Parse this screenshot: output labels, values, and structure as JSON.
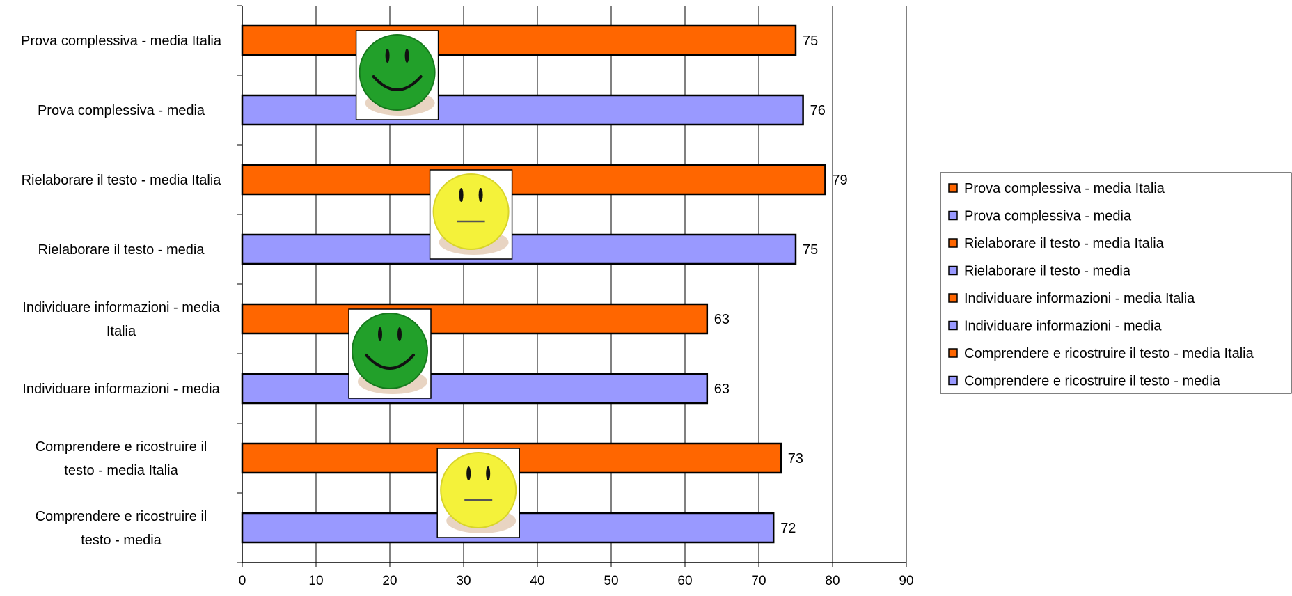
{
  "chart_data": {
    "type": "bar",
    "orientation": "horizontal",
    "categories": [
      "Prova complessiva - media Italia",
      "Prova complessiva - media",
      "Rielaborare il testo - media Italia",
      "Rielaborare il testo - media",
      "Individuare informazioni - media Italia",
      "Individuare informazioni - media",
      "Comprendere e ricostruire il testo - media Italia",
      "Comprendere e ricostruire il testo - media"
    ],
    "category_label_lines": [
      [
        "Prova complessiva - media Italia"
      ],
      [
        "Prova complessiva - media"
      ],
      [
        "Rielaborare il testo - media Italia"
      ],
      [
        "Rielaborare il testo - media"
      ],
      [
        "Individuare informazioni - media",
        "Italia"
      ],
      [
        "Individuare informazioni - media"
      ],
      [
        "Comprendere e ricostruire il",
        "testo - media Italia"
      ],
      [
        "Comprendere e ricostruire il",
        "testo - media"
      ]
    ],
    "values": [
      75,
      76,
      79,
      75,
      63,
      63,
      73,
      72
    ],
    "bar_colors": [
      "#ff6600",
      "#9999ff",
      "#ff6600",
      "#9999ff",
      "#ff6600",
      "#9999ff",
      "#ff6600",
      "#9999ff"
    ],
    "data_labels": [
      "75",
      "76",
      "79",
      "75",
      "63",
      "63",
      "73",
      "72"
    ],
    "xlim": [
      0,
      90
    ],
    "x_ticks": [
      0,
      10,
      20,
      30,
      40,
      50,
      60,
      70,
      80,
      90
    ],
    "x_tick_labels": [
      "0",
      "10",
      "20",
      "30",
      "40",
      "50",
      "60",
      "70",
      "80",
      "90"
    ],
    "grid": true,
    "legend_position": "right",
    "legend": [
      {
        "label": "Prova complessiva - media Italia",
        "color": "#ff6600"
      },
      {
        "label": "Prova complessiva - media",
        "color": "#9999ff"
      },
      {
        "label": "Rielaborare il testo - media Italia",
        "color": "#ff6600"
      },
      {
        "label": "Rielaborare il testo - media",
        "color": "#9999ff"
      },
      {
        "label": "Individuare informazioni - media Italia",
        "color": "#ff6600"
      },
      {
        "label": "Individuare informazioni - media",
        "color": "#9999ff"
      },
      {
        "label": "Comprendere e ricostruire il testo - media Italia",
        "color": "#ff6600"
      },
      {
        "label": "Comprendere e ricostruire il testo - media",
        "color": "#9999ff"
      }
    ],
    "annotations": [
      {
        "type": "smiley-happy-green",
        "group": "Prova complessiva",
        "x": 21
      },
      {
        "type": "smiley-neutral-yellow",
        "group": "Rielaborare il testo",
        "x": 31
      },
      {
        "type": "smiley-happy-green",
        "group": "Individuare informazioni",
        "x": 20
      },
      {
        "type": "smiley-neutral-yellow",
        "group": "Comprendere e ricostruire il testo",
        "x": 32
      }
    ]
  }
}
